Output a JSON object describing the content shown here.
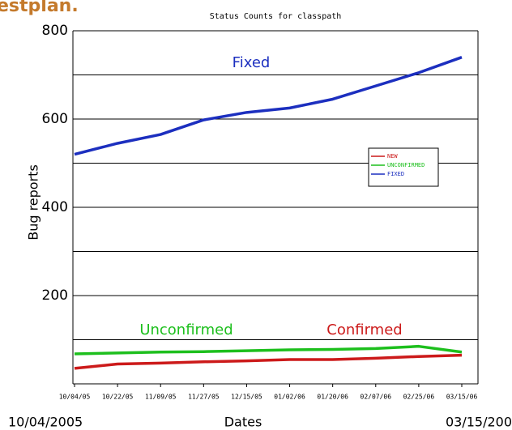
{
  "heading": "estplan.",
  "chart_data": {
    "type": "line",
    "title": "Status Counts for classpath",
    "y_label": "Bug reports",
    "categories": [
      "10/04/05",
      "10/22/05",
      "11/09/05",
      "11/27/05",
      "12/15/05",
      "01/02/06",
      "01/20/06",
      "02/07/06",
      "02/25/06",
      "03/15/06"
    ],
    "series": [
      {
        "name": "NEW",
        "color": "#cc1a1a",
        "values": [
          35,
          45,
          47,
          50,
          52,
          55,
          55,
          58,
          62,
          65
        ]
      },
      {
        "name": "UNCONFIRMED",
        "color": "#1dbf1d",
        "values": [
          68,
          70,
          72,
          73,
          75,
          77,
          78,
          80,
          85,
          72
        ]
      },
      {
        "name": "FIXED",
        "color": "#1c2fbf",
        "values": [
          520,
          545,
          565,
          598,
          615,
          625,
          645,
          675,
          705,
          740
        ]
      }
    ],
    "ylim": [
      0,
      800
    ],
    "yticks": [
      200,
      400,
      600,
      800
    ],
    "minor_yticks": [
      100,
      300,
      500,
      700
    ],
    "grid": true,
    "legend": "right",
    "annotations": [
      {
        "text": "Fixed",
        "color": "#1c2fbf"
      },
      {
        "text": "Unconfirmed",
        "color": "#1dbf1d"
      },
      {
        "text": "Confirmed",
        "color": "#cc1a1a"
      }
    ]
  },
  "footer": {
    "start": "10/04/2005",
    "label": "Dates",
    "end": "03/15/200"
  }
}
